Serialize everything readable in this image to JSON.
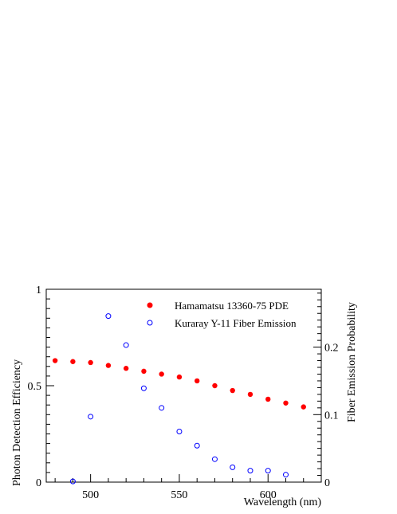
{
  "chart_data": {
    "type": "scatter",
    "xlabel": "Wavelength (nm)",
    "ylabel": "Photon Detection Efficiency",
    "y2label": "Fiber Emission Probability",
    "xlim": [
      475,
      630
    ],
    "ylim": [
      0,
      1
    ],
    "y2lim": [
      0,
      0.2857
    ],
    "x_ticks": [
      500,
      550,
      600
    ],
    "y_ticks": [
      0,
      0.5,
      1
    ],
    "y_tick_labels": [
      "0",
      "0.5",
      "1"
    ],
    "y2_ticks": [
      0,
      0.1,
      0.2
    ],
    "y2_tick_labels": [
      "0",
      "0.1",
      "0.2"
    ],
    "legend_position": "top-right",
    "series": [
      {
        "name": "Hamamatsu 13360-75 PDE",
        "axis": "left",
        "marker": "filled-circle",
        "color": "#ff0000",
        "x": [
          480,
          490,
          500,
          510,
          520,
          530,
          540,
          550,
          560,
          570,
          580,
          590,
          600,
          610,
          620
        ],
        "y": [
          0.63,
          0.625,
          0.62,
          0.605,
          0.59,
          0.575,
          0.56,
          0.545,
          0.525,
          0.5,
          0.475,
          0.455,
          0.43,
          0.41,
          0.39
        ]
      },
      {
        "name": "Kuraray Y-11 Fiber Emission",
        "axis": "right",
        "marker": "open-circle",
        "color": "#0000ff",
        "x": [
          490,
          500,
          510,
          520,
          530,
          540,
          550,
          560,
          570,
          580,
          590,
          600,
          610
        ],
        "y": [
          0.001,
          0.097,
          0.246,
          0.203,
          0.139,
          0.11,
          0.075,
          0.054,
          0.034,
          0.022,
          0.017,
          0.017,
          0.011
        ]
      }
    ]
  }
}
